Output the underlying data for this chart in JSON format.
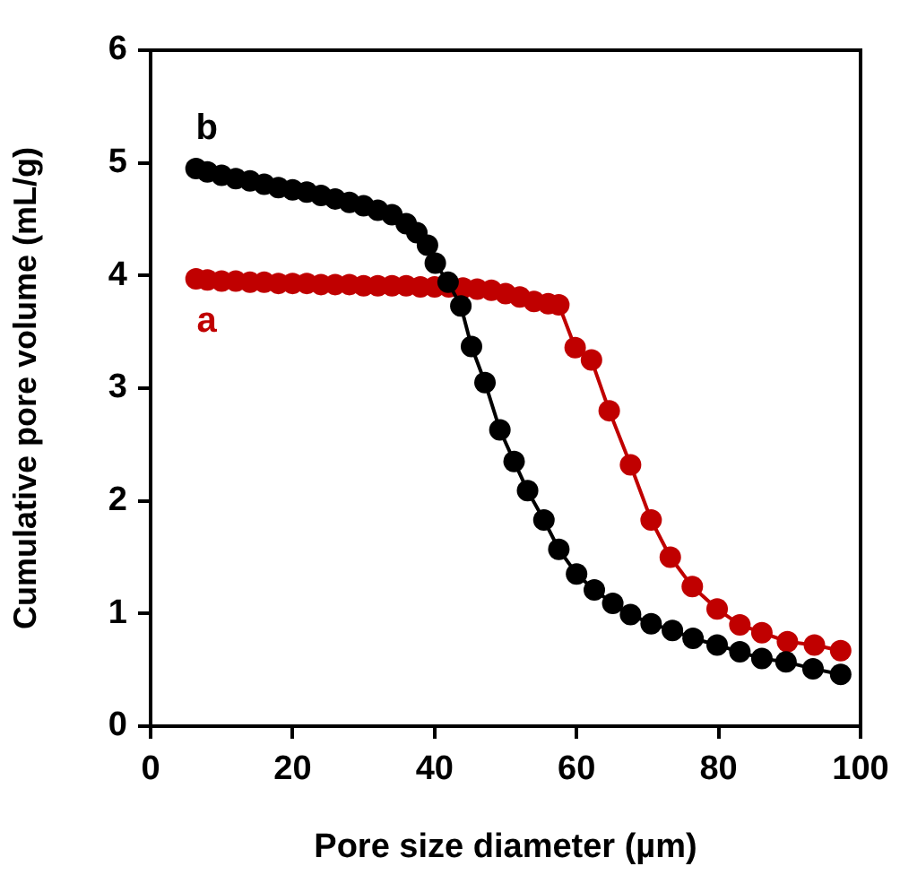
{
  "chart_data": {
    "type": "line",
    "xlabel": "Pore size diameter (µm)",
    "ylabel": "Cumulative pore volume (mL/g)",
    "xlim": [
      0,
      100
    ],
    "xticks": [
      0,
      20,
      40,
      60,
      80,
      100
    ],
    "ylim": [
      0,
      6
    ],
    "yticks": [
      0,
      1,
      2,
      3,
      4,
      5,
      6
    ],
    "grid": false,
    "legend": false,
    "marker": "circle",
    "line_style": "solid",
    "series": [
      {
        "name": "a",
        "color": "#c00000",
        "x": [
          6.4,
          8,
          10,
          12,
          14,
          16,
          18,
          20,
          22,
          24,
          26,
          28,
          30,
          32,
          34,
          36,
          38,
          40,
          42,
          44,
          46,
          48,
          50,
          52,
          54,
          56,
          57.5,
          59.8,
          62.1,
          64.6,
          67.6,
          70.5,
          73.2,
          76.3,
          79.8,
          83,
          86.1,
          89.7,
          93.5,
          97.2
        ],
        "values": [
          3.97,
          3.96,
          3.95,
          3.95,
          3.94,
          3.94,
          3.93,
          3.93,
          3.93,
          3.92,
          3.92,
          3.92,
          3.91,
          3.91,
          3.91,
          3.91,
          3.9,
          3.9,
          3.9,
          3.89,
          3.88,
          3.87,
          3.84,
          3.81,
          3.77,
          3.75,
          3.74,
          3.36,
          3.25,
          2.8,
          2.32,
          1.83,
          1.5,
          1.24,
          1.04,
          0.9,
          0.83,
          0.75,
          0.72,
          0.67
        ]
      },
      {
        "name": "b",
        "color": "#000000",
        "x": [
          6.4,
          8,
          10,
          12,
          14,
          16,
          18,
          20,
          22,
          24,
          26,
          28,
          30,
          32,
          34,
          36,
          37.5,
          39,
          40.1,
          41.9,
          43.7,
          45.2,
          47.1,
          49.2,
          51.2,
          53.1,
          55.4,
          57.5,
          60,
          62.5,
          65.1,
          67.6,
          70.5,
          73.5,
          76.4,
          79.8,
          83,
          86.1,
          89.5,
          93.3,
          97.2
        ],
        "values": [
          4.95,
          4.92,
          4.89,
          4.86,
          4.84,
          4.81,
          4.78,
          4.76,
          4.74,
          4.71,
          4.68,
          4.65,
          4.62,
          4.58,
          4.54,
          4.46,
          4.38,
          4.27,
          4.11,
          3.94,
          3.73,
          3.37,
          3.05,
          2.63,
          2.35,
          2.09,
          1.83,
          1.57,
          1.35,
          1.21,
          1.09,
          0.99,
          0.91,
          0.85,
          0.78,
          0.72,
          0.66,
          0.6,
          0.57,
          0.51,
          0.46
        ]
      }
    ]
  }
}
